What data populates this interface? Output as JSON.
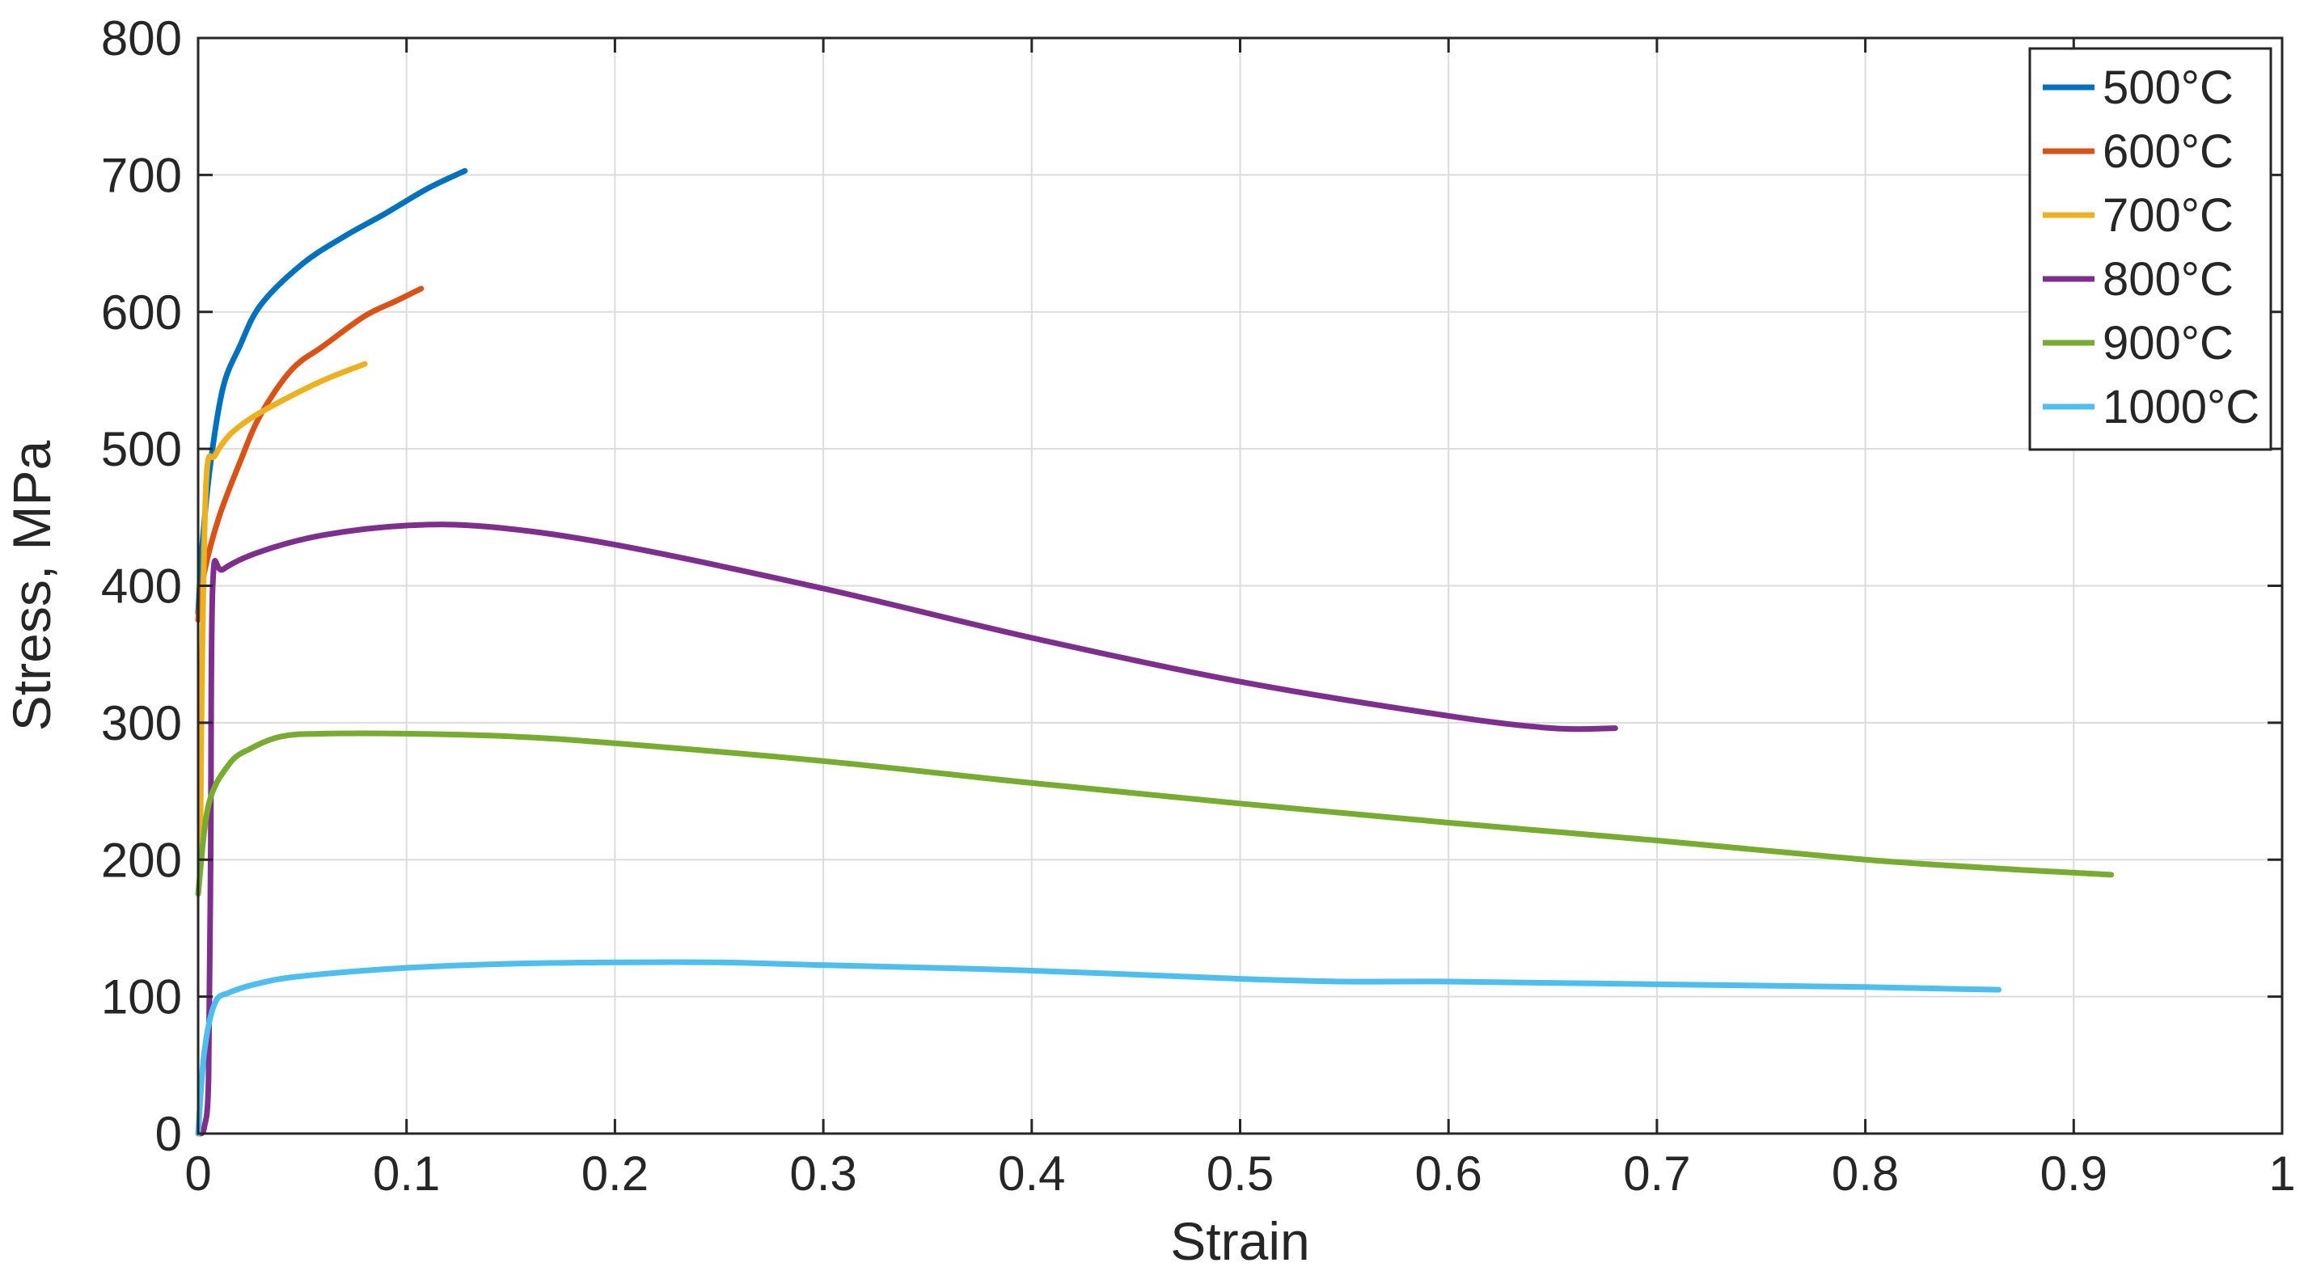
{
  "chart_data": {
    "type": "line",
    "title": "",
    "xlabel": "Strain",
    "ylabel": "Stress, MPa",
    "xlim": [
      0,
      1
    ],
    "ylim": [
      0,
      800
    ],
    "xticks": [
      0,
      0.1,
      0.2,
      0.3,
      0.4,
      0.5,
      0.6,
      0.7,
      0.8,
      0.9,
      1
    ],
    "xtick_labels": [
      "0",
      "0.1",
      "0.2",
      "0.3",
      "0.4",
      "0.5",
      "0.6",
      "0.7",
      "0.8",
      "0.9",
      "1"
    ],
    "yticks": [
      0,
      100,
      200,
      300,
      400,
      500,
      600,
      700,
      800
    ],
    "ytick_labels": [
      "0",
      "100",
      "200",
      "300",
      "400",
      "500",
      "600",
      "700",
      "800"
    ],
    "grid": true,
    "legend_position": "top-right",
    "series": [
      {
        "name": "500°C",
        "color": "#0072BD",
        "x": [
          0,
          0.002,
          0.006,
          0.012,
          0.02,
          0.03,
          0.05,
          0.07,
          0.09,
          0.11,
          0.128
        ],
        "y": [
          380,
          430,
          490,
          545,
          575,
          605,
          635,
          655,
          672,
          690,
          703
        ]
      },
      {
        "name": "600°C",
        "color": "#D95319",
        "x": [
          0,
          0.003,
          0.01,
          0.02,
          0.03,
          0.045,
          0.06,
          0.08,
          0.095,
          0.107
        ],
        "y": [
          375,
          410,
          450,
          490,
          525,
          558,
          575,
          597,
          608,
          617
        ]
      },
      {
        "name": "700°C",
        "color": "#EDB120",
        "x": [
          0.001,
          0.002,
          0.004,
          0.008,
          0.015,
          0.025,
          0.04,
          0.06,
          0.08
        ],
        "y": [
          200,
          350,
          480,
          495,
          510,
          522,
          535,
          550,
          562
        ]
      },
      {
        "name": "800°C",
        "color": "#7E2F8E",
        "x": [
          0.001,
          0.003,
          0.005,
          0.006,
          0.007,
          0.012,
          0.03,
          0.06,
          0.1,
          0.14,
          0.2,
          0.3,
          0.4,
          0.5,
          0.6,
          0.65,
          0.68
        ],
        "y": [
          0,
          5,
          40,
          200,
          400,
          412,
          425,
          437,
          444,
          443,
          430,
          398,
          362,
          330,
          305,
          296,
          296
        ],
        "mode": "path"
      },
      {
        "name": "900°C",
        "color": "#77AC30",
        "x": [
          0,
          0.005,
          0.015,
          0.025,
          0.04,
          0.06,
          0.1,
          0.15,
          0.2,
          0.3,
          0.4,
          0.5,
          0.6,
          0.7,
          0.8,
          0.87,
          0.918
        ],
        "y": [
          175,
          240,
          270,
          281,
          290,
          292,
          292,
          290,
          285,
          272,
          256,
          241,
          227,
          214,
          200,
          193,
          189
        ]
      },
      {
        "name": "1000°C",
        "color": "#4DBEEE",
        "x": [
          0,
          0.003,
          0.008,
          0.015,
          0.03,
          0.05,
          0.1,
          0.15,
          0.2,
          0.25,
          0.3,
          0.4,
          0.5,
          0.55,
          0.6,
          0.7,
          0.8,
          0.864
        ],
        "y": [
          0,
          60,
          95,
          103,
          110,
          115,
          121,
          124,
          125,
          125,
          123,
          119,
          113,
          111,
          111,
          109,
          107,
          105
        ]
      }
    ]
  }
}
